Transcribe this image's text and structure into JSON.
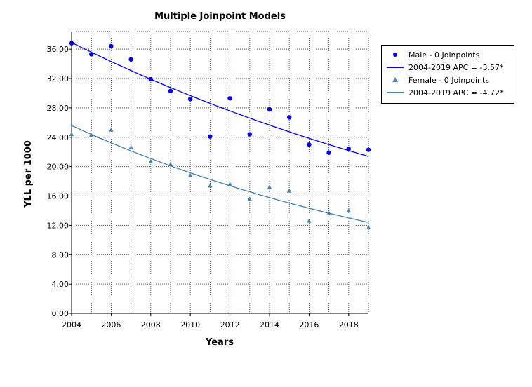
{
  "chart_data": {
    "type": "scatter",
    "title": "Multiple Joinpoint Models",
    "xlabel": "Years",
    "ylabel": "YLL per 1000",
    "xlim": [
      2004,
      2019
    ],
    "ylim": [
      0,
      38.4
    ],
    "x_ticks": [
      2004,
      2006,
      2008,
      2010,
      2012,
      2014,
      2016,
      2018
    ],
    "y_ticks": [
      "0.00",
      "4.00",
      "8.00",
      "12.00",
      "16.00",
      "20.00",
      "24.00",
      "28.00",
      "32.00",
      "36.00"
    ],
    "grid": true,
    "legend_position": "right",
    "x": [
      2004,
      2005,
      2006,
      2007,
      2008,
      2009,
      2010,
      2011,
      2012,
      2013,
      2014,
      2015,
      2016,
      2017,
      2018,
      2019
    ],
    "series": [
      {
        "name": "Male - 0 Joinpoints",
        "marker": "circle",
        "color": "#0000ee",
        "values": [
          36.8,
          35.3,
          36.4,
          34.6,
          31.9,
          30.3,
          29.2,
          24.1,
          29.3,
          24.4,
          27.8,
          26.7,
          23.0,
          21.9,
          22.4,
          22.3
        ]
      },
      {
        "name": "Female - 0 Joinpoints",
        "marker": "triangle",
        "color": "#4682b4",
        "values": [
          24.4,
          24.3,
          25.0,
          22.6,
          20.7,
          20.3,
          18.8,
          17.4,
          17.6,
          15.6,
          17.2,
          16.7,
          12.6,
          13.6,
          14.0,
          11.7
        ]
      }
    ],
    "fits": [
      {
        "name": "2004-2019 APC  = -3.57*",
        "color": "#0000ee",
        "start": 36.9,
        "apc": -3.57
      },
      {
        "name": "2004-2019 APC  = -4.72*",
        "color": "#4682b4",
        "start": 25.6,
        "apc": -4.72
      }
    ]
  }
}
